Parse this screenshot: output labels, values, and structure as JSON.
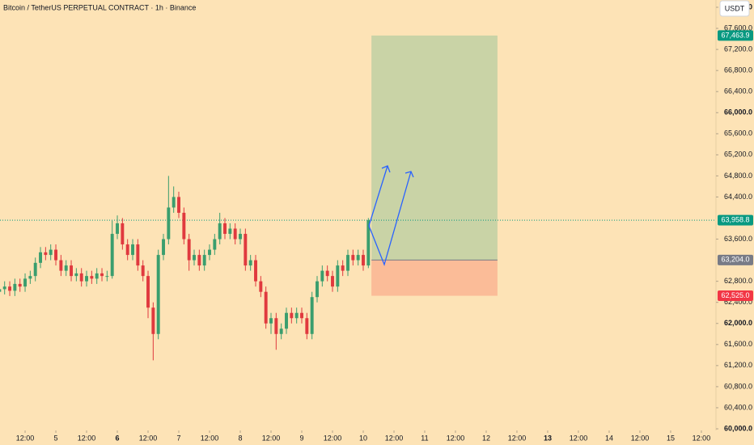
{
  "chart_data": {
    "type": "candlestick",
    "title": "Bitcoin / TetherUS PERPETUAL CONTRACT · 1h · Binance",
    "currency": "USDT",
    "x": [
      -22,
      -20,
      -18,
      -16,
      -14,
      -12,
      -10,
      -8,
      -6,
      -4,
      -2,
      0,
      2,
      4,
      6,
      8,
      10,
      12,
      14,
      16,
      18,
      20,
      22,
      24,
      26,
      28,
      30,
      32,
      34,
      36,
      38,
      40,
      42,
      44,
      46,
      48,
      50,
      52,
      54,
      56,
      58,
      60,
      62,
      64,
      66,
      68,
      70,
      72,
      74,
      76,
      78,
      80,
      82,
      84,
      86,
      88,
      90,
      92,
      94,
      96,
      98,
      100,
      102,
      104,
      106,
      108,
      110,
      112,
      114,
      116,
      118,
      120,
      122
    ],
    "open": [
      62600,
      62650,
      62700,
      62620,
      62750,
      62700,
      62850,
      62900,
      63150,
      63350,
      63300,
      63400,
      63200,
      63000,
      63100,
      62900,
      62950,
      62800,
      62900,
      62850,
      62950,
      62900,
      62900,
      63700,
      63900,
      63500,
      63300,
      63500,
      63100,
      62900,
      62300,
      61800,
      63300,
      63600,
      64200,
      64400,
      64100,
      63600,
      63200,
      63300,
      63100,
      63300,
      63400,
      63600,
      63900,
      63700,
      63800,
      63600,
      63700,
      63100,
      63200,
      62800,
      62600,
      62000,
      62100,
      61800,
      61900,
      62200,
      62100,
      62200,
      62100,
      61800,
      62500,
      62800,
      63000,
      62900,
      62700,
      63100,
      63000,
      63300,
      63200,
      63300,
      63100
    ],
    "high": [
      62750,
      62800,
      62800,
      62850,
      62850,
      62950,
      63000,
      63250,
      63450,
      63450,
      63500,
      63500,
      63300,
      63200,
      63200,
      63050,
      63050,
      63000,
      63000,
      63050,
      63050,
      63000,
      63950,
      64050,
      64000,
      63600,
      63600,
      63600,
      63200,
      63000,
      62400,
      63400,
      63700,
      64800,
      64600,
      64500,
      64200,
      63700,
      63400,
      63400,
      63400,
      63500,
      63700,
      64100,
      64000,
      63900,
      63900,
      63800,
      63800,
      63300,
      63300,
      62900,
      62700,
      62200,
      62200,
      62000,
      62300,
      62300,
      62300,
      62300,
      62200,
      62600,
      62900,
      63100,
      63100,
      63000,
      63200,
      63200,
      63400,
      63400,
      63400,
      63400,
      64000
    ],
    "low": [
      62500,
      62550,
      62520,
      62520,
      62600,
      62600,
      62750,
      62800,
      63050,
      63200,
      63200,
      63100,
      62900,
      62900,
      62800,
      62800,
      62700,
      62700,
      62750,
      62750,
      62800,
      62800,
      62850,
      63600,
      63400,
      63200,
      63200,
      63000,
      62800,
      62100,
      61300,
      61700,
      63200,
      63500,
      64100,
      64000,
      63500,
      63000,
      63100,
      63000,
      63000,
      63200,
      63300,
      63500,
      63600,
      63600,
      63500,
      63500,
      63000,
      63000,
      62700,
      62500,
      61900,
      61800,
      61500,
      61700,
      61800,
      62000,
      62000,
      62000,
      61700,
      61700,
      62400,
      62700,
      62800,
      62600,
      62600,
      62900,
      62900,
      63100,
      63100,
      63000,
      63050
    ],
    "close": [
      62650,
      62700,
      62620,
      62750,
      62700,
      62850,
      62900,
      63150,
      63350,
      63300,
      63400,
      63200,
      63000,
      63100,
      62900,
      62950,
      62800,
      62900,
      62850,
      62950,
      62900,
      62900,
      63700,
      63900,
      63500,
      63300,
      63500,
      63100,
      62900,
      62300,
      61800,
      63300,
      63600,
      64200,
      64400,
      64100,
      63600,
      63200,
      63300,
      63100,
      63300,
      63400,
      63600,
      63900,
      63700,
      63800,
      63600,
      63700,
      63100,
      63200,
      62800,
      62600,
      62000,
      62100,
      61800,
      61900,
      62200,
      62100,
      62200,
      62100,
      61800,
      62500,
      62800,
      63000,
      62900,
      62700,
      63100,
      63000,
      63300,
      63200,
      63300,
      63100,
      63958.8
    ],
    "up_color": "#3a9e6e",
    "down_color": "#e0393e",
    "xlim": [
      -21.8,
      257.7
    ],
    "ylim": [
      60000,
      68000
    ],
    "xticks": [
      {
        "value": -12,
        "label": "12:00"
      },
      {
        "value": 0,
        "label": "5"
      },
      {
        "value": 12,
        "label": "12:00"
      },
      {
        "value": 24,
        "label": "6"
      },
      {
        "value": 36,
        "label": "12:00"
      },
      {
        "value": 48,
        "label": "7"
      },
      {
        "value": 60,
        "label": "12:00"
      },
      {
        "value": 72,
        "label": "8"
      },
      {
        "value": 84,
        "label": "12:00"
      },
      {
        "value": 96,
        "label": "9"
      },
      {
        "value": 108,
        "label": "12:00"
      },
      {
        "value": 120,
        "label": "10"
      },
      {
        "value": 132,
        "label": "12:00"
      },
      {
        "value": 144,
        "label": "11"
      },
      {
        "value": 156,
        "label": "12:00"
      },
      {
        "value": 168,
        "label": "12"
      },
      {
        "value": 180,
        "label": "12:00"
      },
      {
        "value": 192,
        "label": "13"
      },
      {
        "value": 204,
        "label": "12:00"
      },
      {
        "value": 216,
        "label": "14"
      },
      {
        "value": 228,
        "label": "12:00"
      },
      {
        "value": 240,
        "label": "15"
      },
      {
        "value": 252,
        "label": "12:00"
      }
    ],
    "yticks": [
      {
        "value": 60000,
        "label": "60,000.0"
      },
      {
        "value": 60400,
        "label": "60,400.0"
      },
      {
        "value": 60800,
        "label": "60,800.0"
      },
      {
        "value": 61200,
        "label": "61,200.0"
      },
      {
        "value": 61600,
        "label": "61,600.0"
      },
      {
        "value": 62000,
        "label": "62,000.0"
      },
      {
        "value": 62400,
        "label": "62,400.0"
      },
      {
        "value": 62800,
        "label": "62,800.0"
      },
      {
        "value": 63600,
        "label": "63,600.0"
      },
      {
        "value": 64400,
        "label": "64,400.0"
      },
      {
        "value": 64800,
        "label": "64,800.0"
      },
      {
        "value": 65200,
        "label": "65,200.0"
      },
      {
        "value": 65600,
        "label": "65,600.0"
      },
      {
        "value": 66000,
        "label": "66,000.0"
      },
      {
        "value": 66400,
        "label": "66,400.0"
      },
      {
        "value": 66800,
        "label": "66,800.0"
      },
      {
        "value": 67200,
        "label": "67,200.0"
      },
      {
        "value": 67600,
        "label": "67,600.0"
      },
      {
        "value": 68000,
        "label": "68,000.0"
      }
    ],
    "last_price": {
      "value": 63958.8,
      "label": "63,958.8",
      "color": "#089981"
    },
    "position": {
      "x_range": [
        123.2,
        172.4
      ],
      "target": {
        "value": 67463.9,
        "label": "67,463.9",
        "color": "#089981",
        "fill": "#c9d3a6"
      },
      "entry": {
        "value": 63204.0,
        "label": "63,204.0",
        "color": "#787b86"
      },
      "stop": {
        "value": 62525.0,
        "label": "62,525.0",
        "color": "#f23645",
        "fill": "#fbbc98"
      }
    }
  }
}
